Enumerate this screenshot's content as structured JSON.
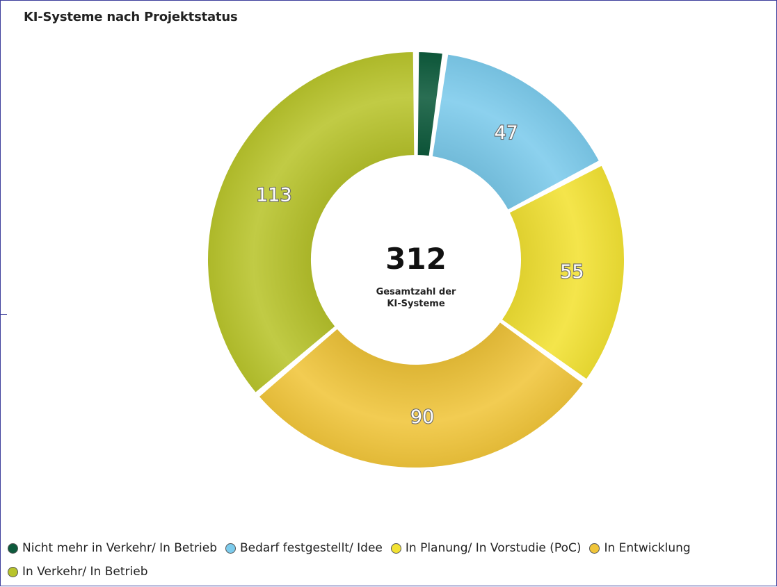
{
  "title": "KI-Systeme nach Projektstatus",
  "center": {
    "total": "312",
    "caption_line1": "Gesamtzahl der",
    "caption_line2": "KI-Systeme"
  },
  "chart_data": {
    "type": "pie",
    "title": "KI-Systeme nach Projektstatus",
    "donut": true,
    "total": 312,
    "legend_position": "bottom",
    "slices": [
      {
        "label": "Nicht mehr in Verkehr/ In Betrieb",
        "value": 7,
        "color": "#0d5a3c",
        "data_label": ""
      },
      {
        "label": "Bedarf festgestellt/ Idee",
        "value": 47,
        "color": "#7ccbec",
        "data_label": "47"
      },
      {
        "label": "In Planung/ In Vorstudie (PoC)",
        "value": 55,
        "color": "#f2e233",
        "data_label": "55"
      },
      {
        "label": "In Entwicklung",
        "value": 90,
        "color": "#f0c53a",
        "data_label": "90"
      },
      {
        "label": "In Verkehr/ In Betrieb",
        "value": 113,
        "color": "#b8c42c",
        "data_label": "113"
      }
    ]
  },
  "legend": {
    "items": [
      {
        "label": "Nicht mehr in Verkehr/ In Betrieb",
        "color": "#0d5a3c"
      },
      {
        "label": "Bedarf festgestellt/ Idee",
        "color": "#7ccbec"
      },
      {
        "label": "In Planung/ In Vorstudie (PoC)",
        "color": "#f2e233"
      },
      {
        "label": "In Entwicklung",
        "color": "#f0c53a"
      },
      {
        "label": "In Verkehr/ In Betrieb",
        "color": "#b8c42c"
      }
    ]
  }
}
